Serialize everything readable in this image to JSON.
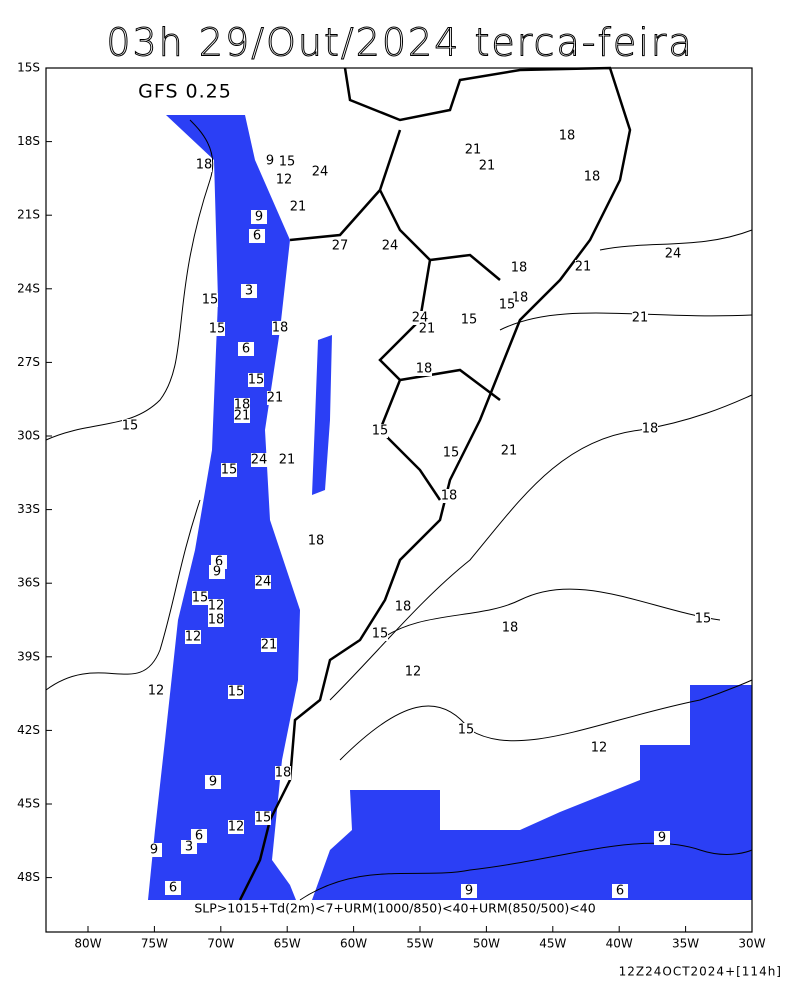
{
  "title": "03h 29/Out/2024 terca-feira",
  "model": "GFS 0.25",
  "lat_labels": [
    "15S",
    "18S",
    "21S",
    "24S",
    "27S",
    "30S",
    "33S",
    "36S",
    "39S",
    "42S",
    "45S",
    "48S"
  ],
  "lon_labels": [
    "80W",
    "75W",
    "70W",
    "65W",
    "60W",
    "55W",
    "50W",
    "45W",
    "40W",
    "35W",
    "30W"
  ],
  "contour_labels": [
    18,
    9,
    15,
    12,
    24,
    21,
    9,
    6,
    27,
    24,
    3,
    15,
    15,
    18,
    6,
    15,
    21,
    18,
    21,
    15,
    24,
    21,
    15,
    18,
    6,
    9,
    24,
    15,
    12,
    18,
    12,
    21,
    15,
    18,
    18,
    15,
    12,
    12,
    15,
    15,
    12,
    18,
    9,
    15,
    12,
    6,
    3,
    9,
    6,
    9,
    6,
    9,
    21,
    18,
    21,
    18,
    24,
    18,
    21,
    18,
    15,
    24,
    21,
    15,
    21,
    18,
    15,
    18,
    15,
    21,
    18
  ],
  "legend": "SLP>1015+Td(2m)<7+URM(1000/850)<40+URM(850/500)<40",
  "run": "12Z24OCT2024+[114h]"
}
